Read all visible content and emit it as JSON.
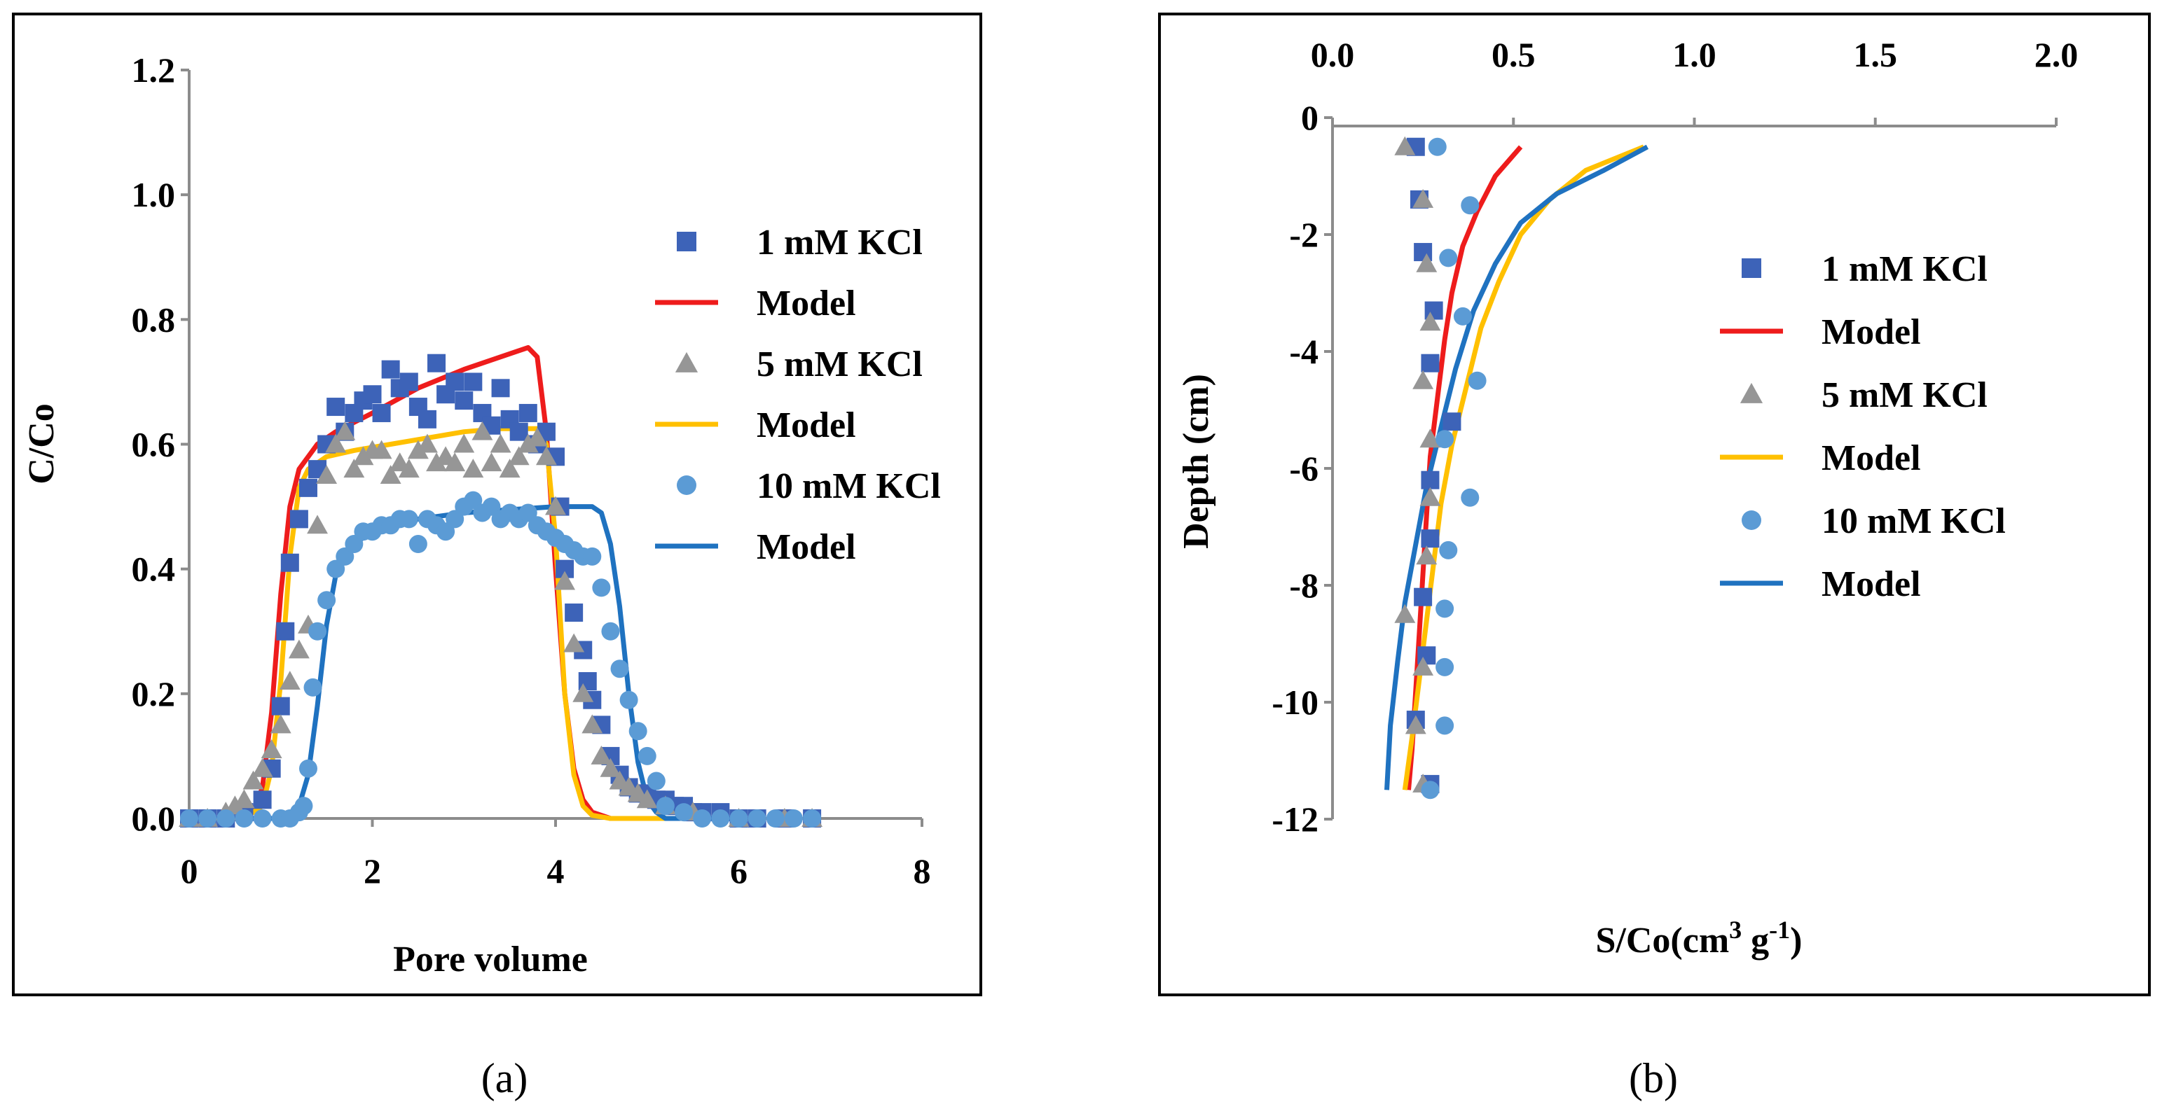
{
  "colors": {
    "s1_marker": "#3d63b8",
    "s1_model": "#ee1c1c",
    "s2_marker": "#969696",
    "s2_model": "#ffc000",
    "s3_marker": "#5b9bd5",
    "s3_model": "#1f72c0",
    "axis": "#8c8c8c"
  },
  "chart_data": [
    {
      "type": "scatter",
      "panel": "(a)",
      "xlabel": "Pore volume",
      "ylabel": "C/Co",
      "xlim": [
        0,
        8
      ],
      "ylim": [
        0,
        1.2
      ],
      "xticks": [
        "0",
        "2",
        "4",
        "6",
        "8"
      ],
      "yticks": [
        "0.0",
        "0.2",
        "0.4",
        "0.6",
        "0.8",
        "1.0",
        "1.2"
      ],
      "legend_position": "right",
      "series": [
        {
          "name": "1 mM KCl",
          "kind": "points",
          "marker": "square",
          "x": [
            0,
            0.2,
            0.4,
            0.6,
            0.8,
            0.9,
            1.0,
            1.05,
            1.1,
            1.2,
            1.3,
            1.4,
            1.5,
            1.6,
            1.7,
            1.8,
            1.9,
            2.0,
            2.1,
            2.2,
            2.3,
            2.4,
            2.5,
            2.6,
            2.7,
            2.8,
            2.9,
            3.0,
            3.1,
            3.2,
            3.3,
            3.4,
            3.5,
            3.6,
            3.7,
            3.8,
            3.9,
            4.0,
            4.05,
            4.1,
            4.2,
            4.3,
            4.35,
            4.4,
            4.5,
            4.6,
            4.7,
            4.8,
            4.9,
            5.0,
            5.1,
            5.2,
            5.3,
            5.4,
            5.5,
            5.6,
            5.8,
            6.0,
            6.2,
            6.5,
            6.8
          ],
          "y": [
            0,
            0,
            0,
            0.01,
            0.03,
            0.08,
            0.18,
            0.3,
            0.41,
            0.48,
            0.53,
            0.56,
            0.6,
            0.66,
            0.62,
            0.65,
            0.67,
            0.68,
            0.65,
            0.72,
            0.69,
            0.7,
            0.66,
            0.64,
            0.73,
            0.68,
            0.7,
            0.67,
            0.7,
            0.65,
            0.63,
            0.69,
            0.64,
            0.62,
            0.65,
            0.6,
            0.62,
            0.58,
            0.5,
            0.4,
            0.33,
            0.27,
            0.22,
            0.19,
            0.15,
            0.1,
            0.07,
            0.05,
            0.04,
            0.04,
            0.03,
            0.03,
            0.02,
            0.02,
            0.01,
            0.01,
            0.01,
            0,
            0,
            0,
            0
          ]
        },
        {
          "name": "Model",
          "kind": "line",
          "x": [
            0,
            0.5,
            0.7,
            0.8,
            0.9,
            1.0,
            1.1,
            1.2,
            1.4,
            1.6,
            2.0,
            2.5,
            3.0,
            3.5,
            3.7,
            3.8,
            3.9,
            4.0,
            4.1,
            4.2,
            4.3,
            4.4,
            4.6,
            4.8,
            5.0,
            5.5,
            6.0
          ],
          "y": [
            0,
            0,
            0.01,
            0.05,
            0.17,
            0.36,
            0.5,
            0.56,
            0.6,
            0.62,
            0.65,
            0.69,
            0.72,
            0.745,
            0.755,
            0.74,
            0.62,
            0.4,
            0.2,
            0.08,
            0.03,
            0.01,
            0,
            0,
            0,
            0,
            0
          ]
        },
        {
          "name": "5 mM KCl",
          "kind": "points",
          "marker": "triangle",
          "x": [
            0,
            0.2,
            0.4,
            0.5,
            0.6,
            0.7,
            0.8,
            0.9,
            1.0,
            1.1,
            1.2,
            1.3,
            1.4,
            1.5,
            1.6,
            1.7,
            1.8,
            1.9,
            2.0,
            2.1,
            2.2,
            2.3,
            2.4,
            2.5,
            2.6,
            2.7,
            2.8,
            2.9,
            3.0,
            3.1,
            3.2,
            3.3,
            3.4,
            3.5,
            3.6,
            3.7,
            3.8,
            3.9,
            4.0,
            4.1,
            4.2,
            4.3,
            4.4,
            4.5,
            4.6,
            4.7,
            4.8,
            4.9,
            5.0,
            5.2,
            5.5,
            6.0,
            6.5,
            6.8
          ],
          "y": [
            0,
            0,
            0.01,
            0.02,
            0.03,
            0.06,
            0.08,
            0.11,
            0.15,
            0.22,
            0.27,
            0.31,
            0.47,
            0.55,
            0.6,
            0.62,
            0.56,
            0.58,
            0.59,
            0.59,
            0.55,
            0.57,
            0.56,
            0.59,
            0.6,
            0.57,
            0.58,
            0.57,
            0.6,
            0.56,
            0.62,
            0.57,
            0.6,
            0.56,
            0.58,
            0.6,
            0.61,
            0.58,
            0.5,
            0.38,
            0.28,
            0.2,
            0.15,
            0.1,
            0.08,
            0.06,
            0.05,
            0.04,
            0.03,
            0.02,
            0.01,
            0,
            0,
            0
          ]
        },
        {
          "name": "Model",
          "kind": "line",
          "x": [
            0,
            0.6,
            0.8,
            0.9,
            1.0,
            1.1,
            1.2,
            1.3,
            1.5,
            1.8,
            2.2,
            2.6,
            3.0,
            3.4,
            3.8,
            3.9,
            4.0,
            4.1,
            4.2,
            4.3,
            4.4,
            4.6,
            5.0,
            6.0
          ],
          "y": [
            0,
            0,
            0.02,
            0.08,
            0.22,
            0.42,
            0.53,
            0.56,
            0.58,
            0.59,
            0.6,
            0.61,
            0.62,
            0.625,
            0.625,
            0.6,
            0.45,
            0.2,
            0.07,
            0.02,
            0.005,
            0,
            0,
            0
          ]
        },
        {
          "name": "10 mM KCl",
          "kind": "points",
          "marker": "circle",
          "x": [
            0,
            0.2,
            0.4,
            0.6,
            0.8,
            1.0,
            1.1,
            1.2,
            1.25,
            1.3,
            1.35,
            1.4,
            1.5,
            1.6,
            1.7,
            1.8,
            1.9,
            2.0,
            2.1,
            2.2,
            2.3,
            2.4,
            2.5,
            2.6,
            2.7,
            2.8,
            2.9,
            3.0,
            3.1,
            3.2,
            3.3,
            3.4,
            3.5,
            3.6,
            3.7,
            3.8,
            3.9,
            4.0,
            4.1,
            4.2,
            4.3,
            4.4,
            4.5,
            4.6,
            4.7,
            4.8,
            4.9,
            5.0,
            5.1,
            5.2,
            5.4,
            5.6,
            5.8,
            6.0,
            6.2,
            6.4,
            6.6,
            6.8
          ],
          "y": [
            0,
            0,
            0,
            0,
            0,
            0,
            0,
            0.01,
            0.02,
            0.08,
            0.21,
            0.3,
            0.35,
            0.4,
            0.42,
            0.44,
            0.46,
            0.46,
            0.47,
            0.47,
            0.48,
            0.48,
            0.44,
            0.48,
            0.47,
            0.46,
            0.48,
            0.5,
            0.51,
            0.49,
            0.5,
            0.48,
            0.49,
            0.48,
            0.49,
            0.47,
            0.46,
            0.45,
            0.44,
            0.43,
            0.42,
            0.42,
            0.37,
            0.3,
            0.24,
            0.19,
            0.14,
            0.1,
            0.06,
            0.02,
            0.01,
            0,
            0,
            0,
            0,
            0,
            0,
            0
          ]
        },
        {
          "name": "Model",
          "kind": "line",
          "x": [
            0,
            1.0,
            1.1,
            1.2,
            1.3,
            1.4,
            1.5,
            1.6,
            1.8,
            2.0,
            2.5,
            3.0,
            3.5,
            4.0,
            4.2,
            4.4,
            4.5,
            4.6,
            4.7,
            4.8,
            4.9,
            5.0,
            5.1,
            5.2,
            5.5,
            6.0
          ],
          "y": [
            0,
            0,
            0.005,
            0.02,
            0.07,
            0.18,
            0.31,
            0.39,
            0.44,
            0.46,
            0.48,
            0.49,
            0.495,
            0.5,
            0.5,
            0.5,
            0.49,
            0.44,
            0.34,
            0.2,
            0.09,
            0.03,
            0.01,
            0,
            0,
            0
          ]
        }
      ]
    },
    {
      "type": "scatter",
      "panel": "(b)",
      "xlabel_main": "S/Co(cm",
      "xlabel_sup1": "3",
      "xlabel_mid": " g",
      "xlabel_sup2": "-1",
      "xlabel_end": ")",
      "ylabel": "Depth (cm)",
      "xlim": [
        0,
        2.0
      ],
      "ylim": [
        -12,
        0
      ],
      "xticks": [
        "0.0",
        "0.5",
        "1.0",
        "1.5",
        "2.0"
      ],
      "yticks": [
        "0",
        "-2",
        "-4",
        "-6",
        "-8",
        "-10",
        "-12"
      ],
      "x_axis_position": "top",
      "legend_position": "right",
      "series": [
        {
          "name": "1 mM KCl",
          "kind": "points",
          "marker": "square",
          "x": [
            0.23,
            0.24,
            0.25,
            0.28,
            0.27,
            0.33,
            0.27,
            0.27,
            0.25,
            0.26,
            0.23,
            0.27
          ],
          "y": [
            -0.5,
            -1.4,
            -2.3,
            -3.3,
            -4.2,
            -5.2,
            -6.2,
            -7.2,
            -8.2,
            -9.2,
            -10.3,
            -11.4
          ]
        },
        {
          "name": "Model",
          "kind": "line",
          "x": [
            0.52,
            0.45,
            0.4,
            0.36,
            0.33,
            0.31,
            0.29,
            0.27,
            0.26,
            0.25,
            0.24,
            0.23,
            0.22,
            0.21
          ],
          "y": [
            -0.5,
            -1.0,
            -1.6,
            -2.2,
            -3.0,
            -3.8,
            -4.8,
            -5.8,
            -6.8,
            -7.8,
            -8.8,
            -9.8,
            -10.8,
            -11.5
          ]
        },
        {
          "name": "5 mM KCl",
          "kind": "points",
          "marker": "triangle",
          "x": [
            0.2,
            0.25,
            0.26,
            0.27,
            0.25,
            0.27,
            0.27,
            0.26,
            0.2,
            0.25,
            0.23,
            0.25
          ],
          "y": [
            -0.5,
            -1.4,
            -2.5,
            -3.5,
            -4.5,
            -5.5,
            -6.5,
            -7.5,
            -8.5,
            -9.4,
            -10.4,
            -11.4
          ]
        },
        {
          "name": "Model",
          "kind": "line",
          "x": [
            0.86,
            0.7,
            0.6,
            0.52,
            0.46,
            0.41,
            0.37,
            0.33,
            0.3,
            0.28,
            0.26,
            0.24,
            0.22,
            0.2
          ],
          "y": [
            -0.5,
            -0.9,
            -1.4,
            -2.0,
            -2.8,
            -3.6,
            -4.6,
            -5.6,
            -6.6,
            -7.6,
            -8.6,
            -9.6,
            -10.6,
            -11.5
          ]
        },
        {
          "name": "10 mM KCl",
          "kind": "points",
          "marker": "circle",
          "x": [
            0.29,
            0.38,
            0.32,
            0.36,
            0.4,
            0.31,
            0.38,
            0.32,
            0.31,
            0.31,
            0.31,
            0.27
          ],
          "y": [
            -0.5,
            -1.5,
            -2.4,
            -3.4,
            -4.5,
            -5.5,
            -6.5,
            -7.4,
            -8.4,
            -9.4,
            -10.4,
            -11.5
          ]
        },
        {
          "name": "Model",
          "kind": "line",
          "x": [
            0.87,
            0.75,
            0.62,
            0.52,
            0.45,
            0.39,
            0.34,
            0.3,
            0.26,
            0.23,
            0.2,
            0.18,
            0.16,
            0.15
          ],
          "y": [
            -0.5,
            -0.9,
            -1.3,
            -1.8,
            -2.5,
            -3.3,
            -4.3,
            -5.3,
            -6.3,
            -7.3,
            -8.3,
            -9.3,
            -10.4,
            -11.5
          ]
        }
      ]
    }
  ]
}
